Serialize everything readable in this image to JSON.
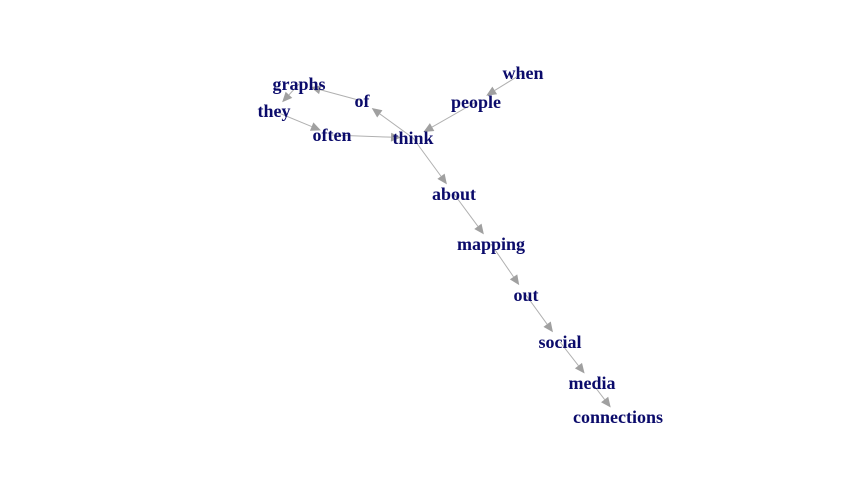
{
  "graph": {
    "nodes": [
      {
        "id": "when",
        "label": "when"
      },
      {
        "id": "people",
        "label": "people"
      },
      {
        "id": "think",
        "label": "think"
      },
      {
        "id": "of",
        "label": "of"
      },
      {
        "id": "graphs",
        "label": "graphs"
      },
      {
        "id": "they",
        "label": "they"
      },
      {
        "id": "often",
        "label": "often"
      },
      {
        "id": "about",
        "label": "about"
      },
      {
        "id": "mapping",
        "label": "mapping"
      },
      {
        "id": "out",
        "label": "out"
      },
      {
        "id": "social",
        "label": "social"
      },
      {
        "id": "media",
        "label": "media"
      },
      {
        "id": "connections",
        "label": "connections"
      }
    ],
    "edges": [
      {
        "from": "when",
        "to": "people"
      },
      {
        "from": "people",
        "to": "think"
      },
      {
        "from": "think",
        "to": "of"
      },
      {
        "from": "of",
        "to": "graphs"
      },
      {
        "from": "graphs",
        "to": "they"
      },
      {
        "from": "they",
        "to": "often"
      },
      {
        "from": "often",
        "to": "think"
      },
      {
        "from": "think",
        "to": "about"
      },
      {
        "from": "about",
        "to": "mapping"
      },
      {
        "from": "mapping",
        "to": "out"
      },
      {
        "from": "out",
        "to": "social"
      },
      {
        "from": "social",
        "to": "media"
      },
      {
        "from": "media",
        "to": "connections"
      }
    ],
    "label_color": "#0b0b6b",
    "edge_color": "#b0b0b0"
  }
}
